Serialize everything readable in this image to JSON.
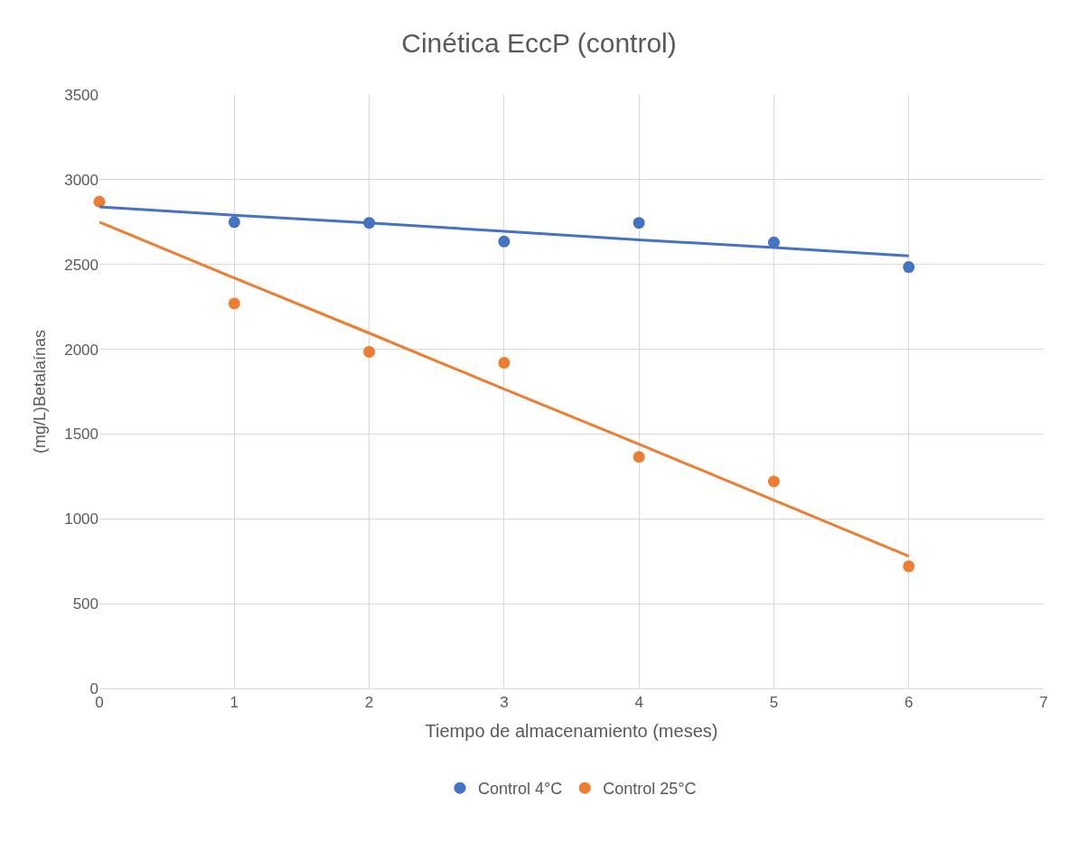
{
  "chart_data": {
    "type": "scatter",
    "title": "Cinética EccP (control)",
    "xlabel": "Tiempo de almacenamiento (meses)",
    "ylabel": "(mg/L)Betalaínas",
    "x": [
      0,
      1,
      2,
      3,
      4,
      5,
      6
    ],
    "series": [
      {
        "name": "Control 4°C",
        "color": "#4472c4",
        "values": [
          null,
          2750,
          2745,
          2635,
          2745,
          2630,
          2485
        ]
      },
      {
        "name": "Control 25°C",
        "color": "#ed7d31",
        "values": [
          2870,
          2270,
          1985,
          1920,
          1365,
          1220,
          720
        ]
      },
      {
        "type": "line",
        "marker": "none",
        "color": "#4472c4",
        "values": [
          2840,
          2790,
          2745,
          2695,
          2645,
          2600,
          2550
        ]
      },
      {
        "type": "line",
        "marker": "none",
        "color": "#ed7d31",
        "values": [
          2750,
          2420,
          2095,
          1765,
          1440,
          1110,
          780
        ]
      }
    ],
    "xlim": [
      0,
      7
    ],
    "xticks": [
      0,
      1,
      2,
      3,
      4,
      5,
      6,
      7
    ],
    "ylim": [
      0,
      3500
    ],
    "yticks": [
      0,
      500,
      1000,
      1500,
      2000,
      2500,
      3000,
      3500
    ],
    "grid": true,
    "legend": "bottom",
    "marker": "circle",
    "line_style": "solid"
  }
}
